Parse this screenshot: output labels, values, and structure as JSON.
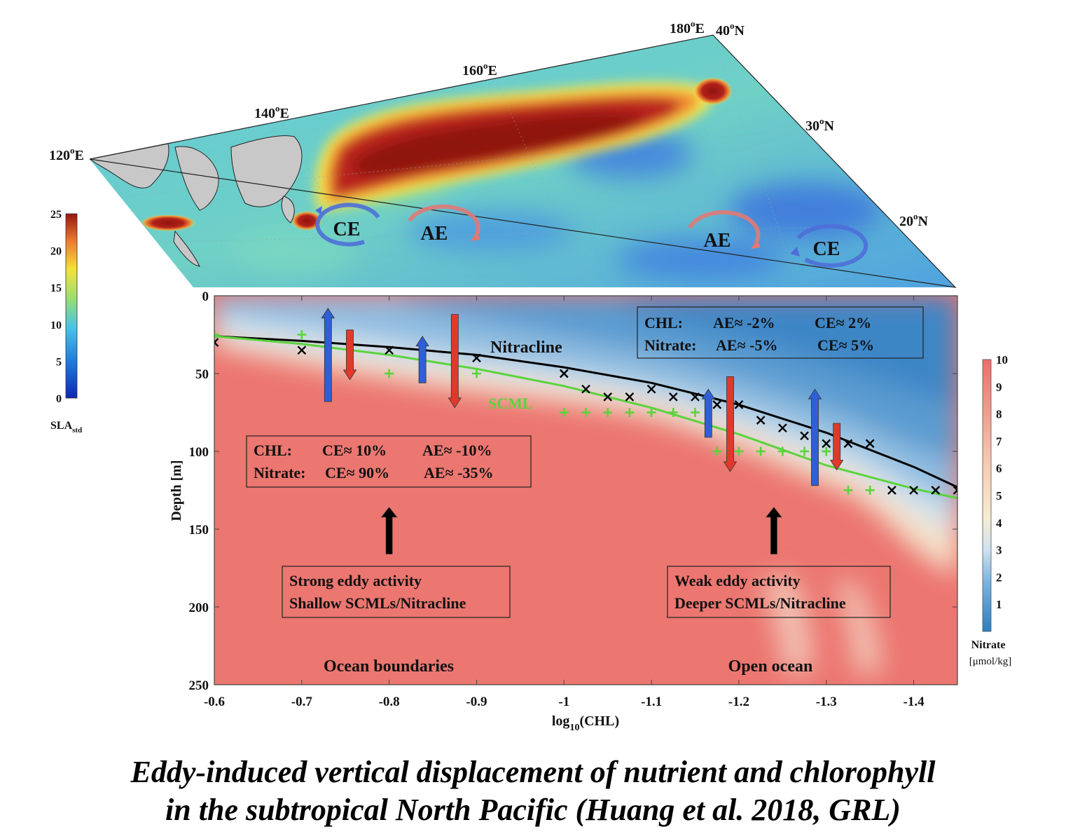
{
  "map": {
    "lon_labels": [
      {
        "deg": "120",
        "sup": "o",
        "hemi": "E"
      },
      {
        "deg": "140",
        "sup": "o",
        "hemi": "E"
      },
      {
        "deg": "160",
        "sup": "o",
        "hemi": "E"
      },
      {
        "deg": "180",
        "sup": "o",
        "hemi": "E"
      }
    ],
    "lat_labels": [
      {
        "deg": "40",
        "sup": "o",
        "hemi": "N"
      },
      {
        "deg": "30",
        "sup": "o",
        "hemi": "N"
      },
      {
        "deg": "20",
        "sup": "o",
        "hemi": "N"
      }
    ],
    "eddies": [
      {
        "label": "CE",
        "kind": "cyclonic"
      },
      {
        "label": "AE",
        "kind": "anticyclonic"
      },
      {
        "label": "AE",
        "kind": "anticyclonic"
      },
      {
        "label": "CE",
        "kind": "cyclonic"
      }
    ],
    "colorbar": {
      "ticks": [
        "25",
        "20",
        "15",
        "10",
        "5",
        "0"
      ],
      "label_main": "SLA",
      "label_sub": "std"
    },
    "colors": {
      "high": "#9b1b12",
      "mid": "#6bd6c4",
      "low": "#4a8fd8",
      "land": "#c8c8c8"
    }
  },
  "chart_data": {
    "type": "scatter",
    "xlabel_main": "log",
    "xlabel_sub": "10",
    "xlabel_rest": "(CHL)",
    "ylabel": "Depth  [m]",
    "xlim": [
      -0.6,
      -1.45
    ],
    "ylim": [
      0,
      250
    ],
    "x_ticks": [
      "-0.6",
      "-0.7",
      "-0.8",
      "-0.9",
      "-1",
      "-1.1",
      "-1.2",
      "-1.3",
      "-1.4"
    ],
    "x_tick_values": [
      -0.6,
      -0.7,
      -0.8,
      -0.9,
      -1.0,
      -1.1,
      -1.2,
      -1.3,
      -1.4
    ],
    "y_ticks": [
      "0",
      "50",
      "100",
      "150",
      "200",
      "250"
    ],
    "y_tick_values": [
      0,
      50,
      100,
      150,
      200,
      250
    ],
    "series": [
      {
        "name": "Nitracline",
        "marker": "x",
        "color": "#000000",
        "points": [
          [
            -0.6,
            30
          ],
          [
            -0.7,
            35
          ],
          [
            -0.8,
            35
          ],
          [
            -0.9,
            40
          ],
          [
            -1.0,
            50
          ],
          [
            -1.025,
            60
          ],
          [
            -1.05,
            65
          ],
          [
            -1.075,
            65
          ],
          [
            -1.1,
            60
          ],
          [
            -1.125,
            65
          ],
          [
            -1.15,
            65
          ],
          [
            -1.175,
            70
          ],
          [
            -1.2,
            70
          ],
          [
            -1.225,
            80
          ],
          [
            -1.25,
            85
          ],
          [
            -1.275,
            90
          ],
          [
            -1.3,
            95
          ],
          [
            -1.325,
            95
          ],
          [
            -1.35,
            95
          ],
          [
            -1.375,
            125
          ],
          [
            -1.4,
            125
          ],
          [
            -1.425,
            125
          ],
          [
            -1.45,
            125
          ]
        ],
        "fit": [
          [
            -0.6,
            26
          ],
          [
            -0.7,
            29
          ],
          [
            -0.8,
            33
          ],
          [
            -0.9,
            38
          ],
          [
            -1.0,
            46
          ],
          [
            -1.1,
            56
          ],
          [
            -1.2,
            70
          ],
          [
            -1.3,
            88
          ],
          [
            -1.4,
            110
          ],
          [
            -1.45,
            123
          ]
        ]
      },
      {
        "name": "SCML",
        "marker": "+",
        "color": "#5ad43c",
        "points": [
          [
            -0.6,
            25
          ],
          [
            -0.7,
            25
          ],
          [
            -0.8,
            50
          ],
          [
            -0.9,
            50
          ],
          [
            -1.0,
            75
          ],
          [
            -1.025,
            75
          ],
          [
            -1.05,
            75
          ],
          [
            -1.075,
            75
          ],
          [
            -1.1,
            75
          ],
          [
            -1.125,
            75
          ],
          [
            -1.15,
            75
          ],
          [
            -1.175,
            100
          ],
          [
            -1.2,
            100
          ],
          [
            -1.225,
            100
          ],
          [
            -1.25,
            100
          ],
          [
            -1.275,
            100
          ],
          [
            -1.3,
            100
          ],
          [
            -1.325,
            125
          ],
          [
            -1.35,
            125
          ]
        ],
        "fit": [
          [
            -0.6,
            26
          ],
          [
            -0.7,
            31
          ],
          [
            -0.8,
            38
          ],
          [
            -0.9,
            47
          ],
          [
            -1.0,
            58
          ],
          [
            -1.1,
            72
          ],
          [
            -1.2,
            89
          ],
          [
            -1.3,
            109
          ],
          [
            -1.4,
            124
          ],
          [
            -1.45,
            130
          ]
        ]
      }
    ],
    "annotations": [
      {
        "text": "Nitracline",
        "color": "#111111"
      },
      {
        "text": "SCML",
        "color": "#5ad43c"
      },
      {
        "text": "Ocean boundaries",
        "color": "#111111"
      },
      {
        "text": "Open ocean",
        "color": "#111111"
      }
    ],
    "arrows": [
      {
        "dir": "up",
        "color": "#2f5fd6",
        "x": -0.73,
        "top": 8,
        "bottom": 68
      },
      {
        "dir": "down",
        "color": "#e0392b",
        "x": -0.755,
        "top": 22,
        "bottom": 54
      },
      {
        "dir": "up",
        "color": "#2f5fd6",
        "x": -0.838,
        "top": 26,
        "bottom": 56
      },
      {
        "dir": "down",
        "color": "#e0392b",
        "x": -0.875,
        "top": 12,
        "bottom": 72
      },
      {
        "dir": "up",
        "color": "#2f5fd6",
        "x": -1.165,
        "top": 60,
        "bottom": 91
      },
      {
        "dir": "down",
        "color": "#e0392b",
        "x": -1.19,
        "top": 52,
        "bottom": 113
      },
      {
        "dir": "up",
        "color": "#2f5fd6",
        "x": -1.287,
        "top": 60,
        "bottom": 122
      },
      {
        "dir": "down",
        "color": "#e0392b",
        "x": -1.312,
        "top": 82,
        "bottom": 112
      },
      {
        "dir": "up",
        "color": "#000000",
        "x": -0.8,
        "top": 136,
        "bottom": 166
      },
      {
        "dir": "up",
        "color": "#000000",
        "x": -1.24,
        "top": 136,
        "bottom": 166
      }
    ],
    "boxes": {
      "right_stats": {
        "rows": [
          [
            "CHL:",
            "AE≈ -2%",
            "CE≈ 2%"
          ],
          [
            "Nitrate:",
            "AE≈ -5%",
            "CE≈ 5%"
          ]
        ]
      },
      "left_stats": {
        "rows": [
          [
            "CHL:",
            "CE≈ 10%",
            "AE≈ -10%"
          ],
          [
            "Nitrate:",
            "CE≈ 90%",
            "AE≈ -35%"
          ]
        ]
      },
      "left_note": {
        "lines": [
          "Strong eddy activity",
          "Shallow SCMLs/Nitracline"
        ]
      },
      "right_note": {
        "lines": [
          "Weak eddy activity",
          "Deeper SCMLs/Nitracline"
        ]
      }
    },
    "colorbar": {
      "ticks": [
        "10",
        "9",
        "8",
        "7",
        "6",
        "5",
        "4",
        "3",
        "2",
        "1"
      ],
      "tick_values": [
        10,
        9,
        8,
        7,
        6,
        5,
        4,
        3,
        2,
        1
      ],
      "label": "Nitrate",
      "units": "[μmol/kg]",
      "range": [
        0,
        10
      ]
    },
    "colors": {
      "shallow": "#3d86c6",
      "deep": "#ec7a72",
      "mid": "#f5e7cf"
    }
  },
  "caption": {
    "line1": "Eddy-induced vertical displacement of nutrient and chlorophyll",
    "line2": "in the subtropical North Pacific (Huang et al. 2018, GRL)"
  }
}
